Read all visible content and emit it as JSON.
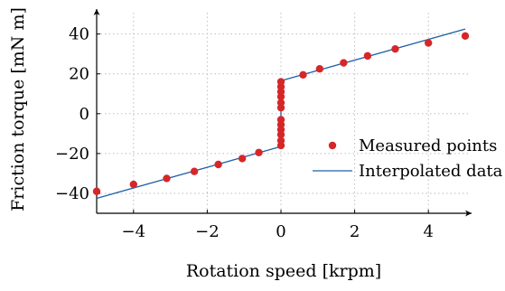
{
  "chart_data": {
    "type": "scatter",
    "xlabel": "Rotation speed [krpm]",
    "ylabel": "Friction torque [mN m]",
    "xlim": [
      -5,
      5
    ],
    "ylim": [
      -50,
      48
    ],
    "xticks": [
      -4,
      -2,
      0,
      2,
      4
    ],
    "yticks": [
      -40,
      -20,
      0,
      20,
      40
    ],
    "xtick_labels": [
      "−4",
      "−2",
      "0",
      "2",
      "4"
    ],
    "ytick_labels": [
      "−40",
      "−20",
      "0",
      "20",
      "40"
    ],
    "grid": true,
    "legend_position": "bottom-right",
    "series": [
      {
        "name": "Measured points",
        "kind": "scatter",
        "color": "#d62728",
        "points": [
          {
            "x": -5,
            "y": -39
          },
          {
            "x": -4,
            "y": -35.5
          },
          {
            "x": -3.1,
            "y": -32.5
          },
          {
            "x": -2.35,
            "y": -29
          },
          {
            "x": -1.7,
            "y": -25.5
          },
          {
            "x": -1.05,
            "y": -22.5
          },
          {
            "x": -0.6,
            "y": -19.5
          },
          {
            "x": 0,
            "y": -16
          },
          {
            "x": 0,
            "y": -13.5
          },
          {
            "x": 0,
            "y": -10.5
          },
          {
            "x": 0,
            "y": -8
          },
          {
            "x": 0,
            "y": -5.5
          },
          {
            "x": 0,
            "y": -3
          },
          {
            "x": 0,
            "y": 3
          },
          {
            "x": 0,
            "y": 5.5
          },
          {
            "x": 0,
            "y": 8.5
          },
          {
            "x": 0,
            "y": 11
          },
          {
            "x": 0,
            "y": 13.5
          },
          {
            "x": 0,
            "y": 16
          },
          {
            "x": 0.6,
            "y": 19.5
          },
          {
            "x": 1.05,
            "y": 22.5
          },
          {
            "x": 1.7,
            "y": 25.5
          },
          {
            "x": 2.35,
            "y": 29
          },
          {
            "x": 3.1,
            "y": 32.5
          },
          {
            "x": 4,
            "y": 35.5
          },
          {
            "x": 5,
            "y": 39
          }
        ]
      },
      {
        "name": "Interpolated data",
        "kind": "line",
        "color": "#1f5fa8",
        "points": [
          {
            "x": -5,
            "y": -42.5
          },
          {
            "x": 0,
            "y": -16.5
          },
          {
            "x": 0,
            "y": 16.5
          },
          {
            "x": 5,
            "y": 42.5
          }
        ]
      }
    ]
  }
}
